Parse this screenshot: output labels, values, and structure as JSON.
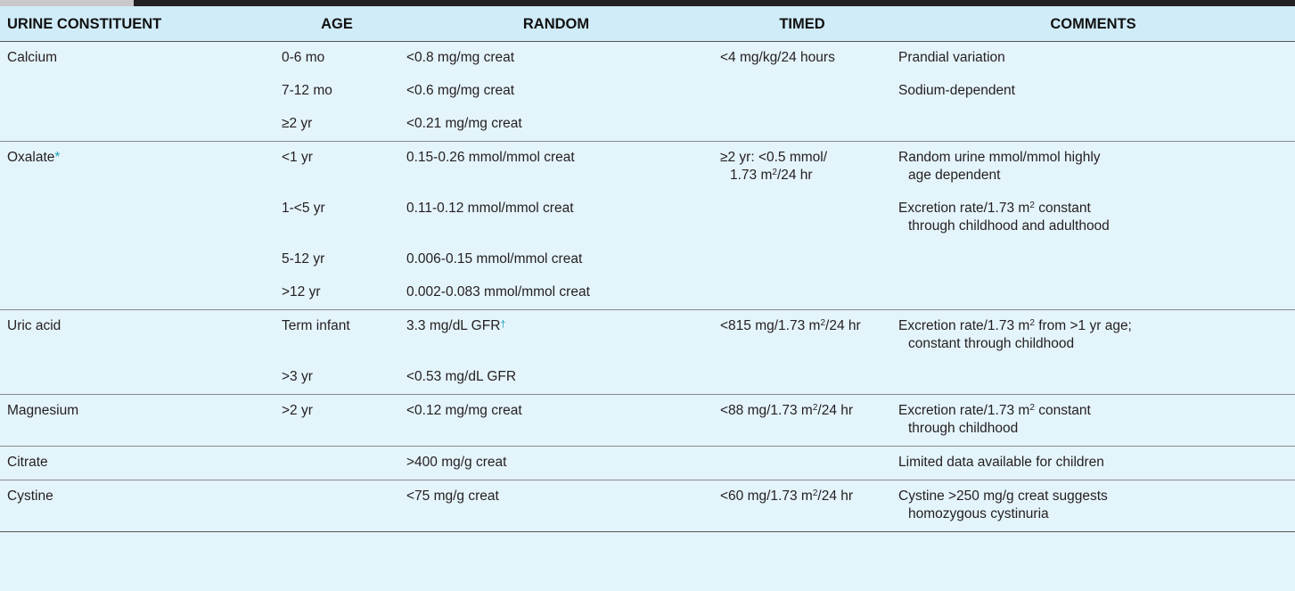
{
  "header": {
    "constituent": "URINE CONSTITUENT",
    "age": "AGE",
    "random": "RANDOM",
    "timed": "TIMED",
    "comments": "COMMENTS"
  },
  "rows": [
    {
      "constituent": "Calcium",
      "age": "0-6 mo",
      "random": "<0.8 mg/mg creat",
      "timed": "<4 mg/kg/24 hours",
      "comments": "Prandial variation"
    },
    {
      "constituent": "",
      "age": "7-12 mo",
      "random": "<0.6 mg/mg creat",
      "timed": "",
      "comments": "Sodium-dependent"
    },
    {
      "constituent": "",
      "age": "≥2 yr",
      "random": "<0.21 mg/mg creat",
      "timed": "",
      "comments": ""
    },
    {
      "constituent": "Oxalate",
      "marker": "*",
      "age": "<1 yr",
      "random": "0.15-0.26 mmol/mmol creat",
      "timed_1": "≥2 yr: <0.5 mmol/",
      "timed_2": "1.73 m",
      "timed_3": "/24 hr",
      "comments_1": "Random urine mmol/mmol highly",
      "comments_2": "age dependent"
    },
    {
      "constituent": "",
      "age": "1-<5 yr",
      "random": "0.11-0.12 mmol/mmol creat",
      "timed": "",
      "comments_1": "Excretion rate/1.73 m",
      "comments_2": " constant",
      "comments_3": "through childhood and adulthood"
    },
    {
      "constituent": "",
      "age": "5-12 yr",
      "random": "0.006-0.15 mmol/mmol creat",
      "timed": "",
      "comments": ""
    },
    {
      "constituent": "",
      "age": ">12 yr",
      "random": "0.002-0.083 mmol/mmol creat",
      "timed": "",
      "comments": ""
    },
    {
      "constituent": "Uric acid",
      "age": "Term infant",
      "random": "3.3 mg/dL GFR",
      "random_marker": "†",
      "timed_1": "<815 mg/1.73 m",
      "timed_2": "/24 hr",
      "comments_1": "Excretion rate/1.73 m",
      "comments_2": " from >1 yr age;",
      "comments_3": "constant through childhood"
    },
    {
      "constituent": "",
      "age": ">3 yr",
      "random": "<0.53 mg/dL GFR",
      "timed": "",
      "comments": ""
    },
    {
      "constituent": "Magnesium",
      "age": ">2 yr",
      "random": "<0.12 mg/mg creat",
      "timed_1": "<88 mg/1.73 m",
      "timed_2": "/24 hr",
      "comments_1": "Excretion rate/1.73 m",
      "comments_2": " constant",
      "comments_3": "through childhood"
    },
    {
      "constituent": "Citrate",
      "age": "",
      "random": ">400 mg/g creat",
      "timed": "",
      "comments": "Limited data available for children"
    },
    {
      "constituent": "Cystine",
      "age": "",
      "random": "<75 mg/g creat",
      "timed_1": "<60 mg/1.73 m",
      "timed_2": "/24 hr",
      "comments_1": "Cystine >250 mg/g creat suggests",
      "comments_2": "homozygous cystinuria"
    }
  ],
  "superscript_two": "2"
}
